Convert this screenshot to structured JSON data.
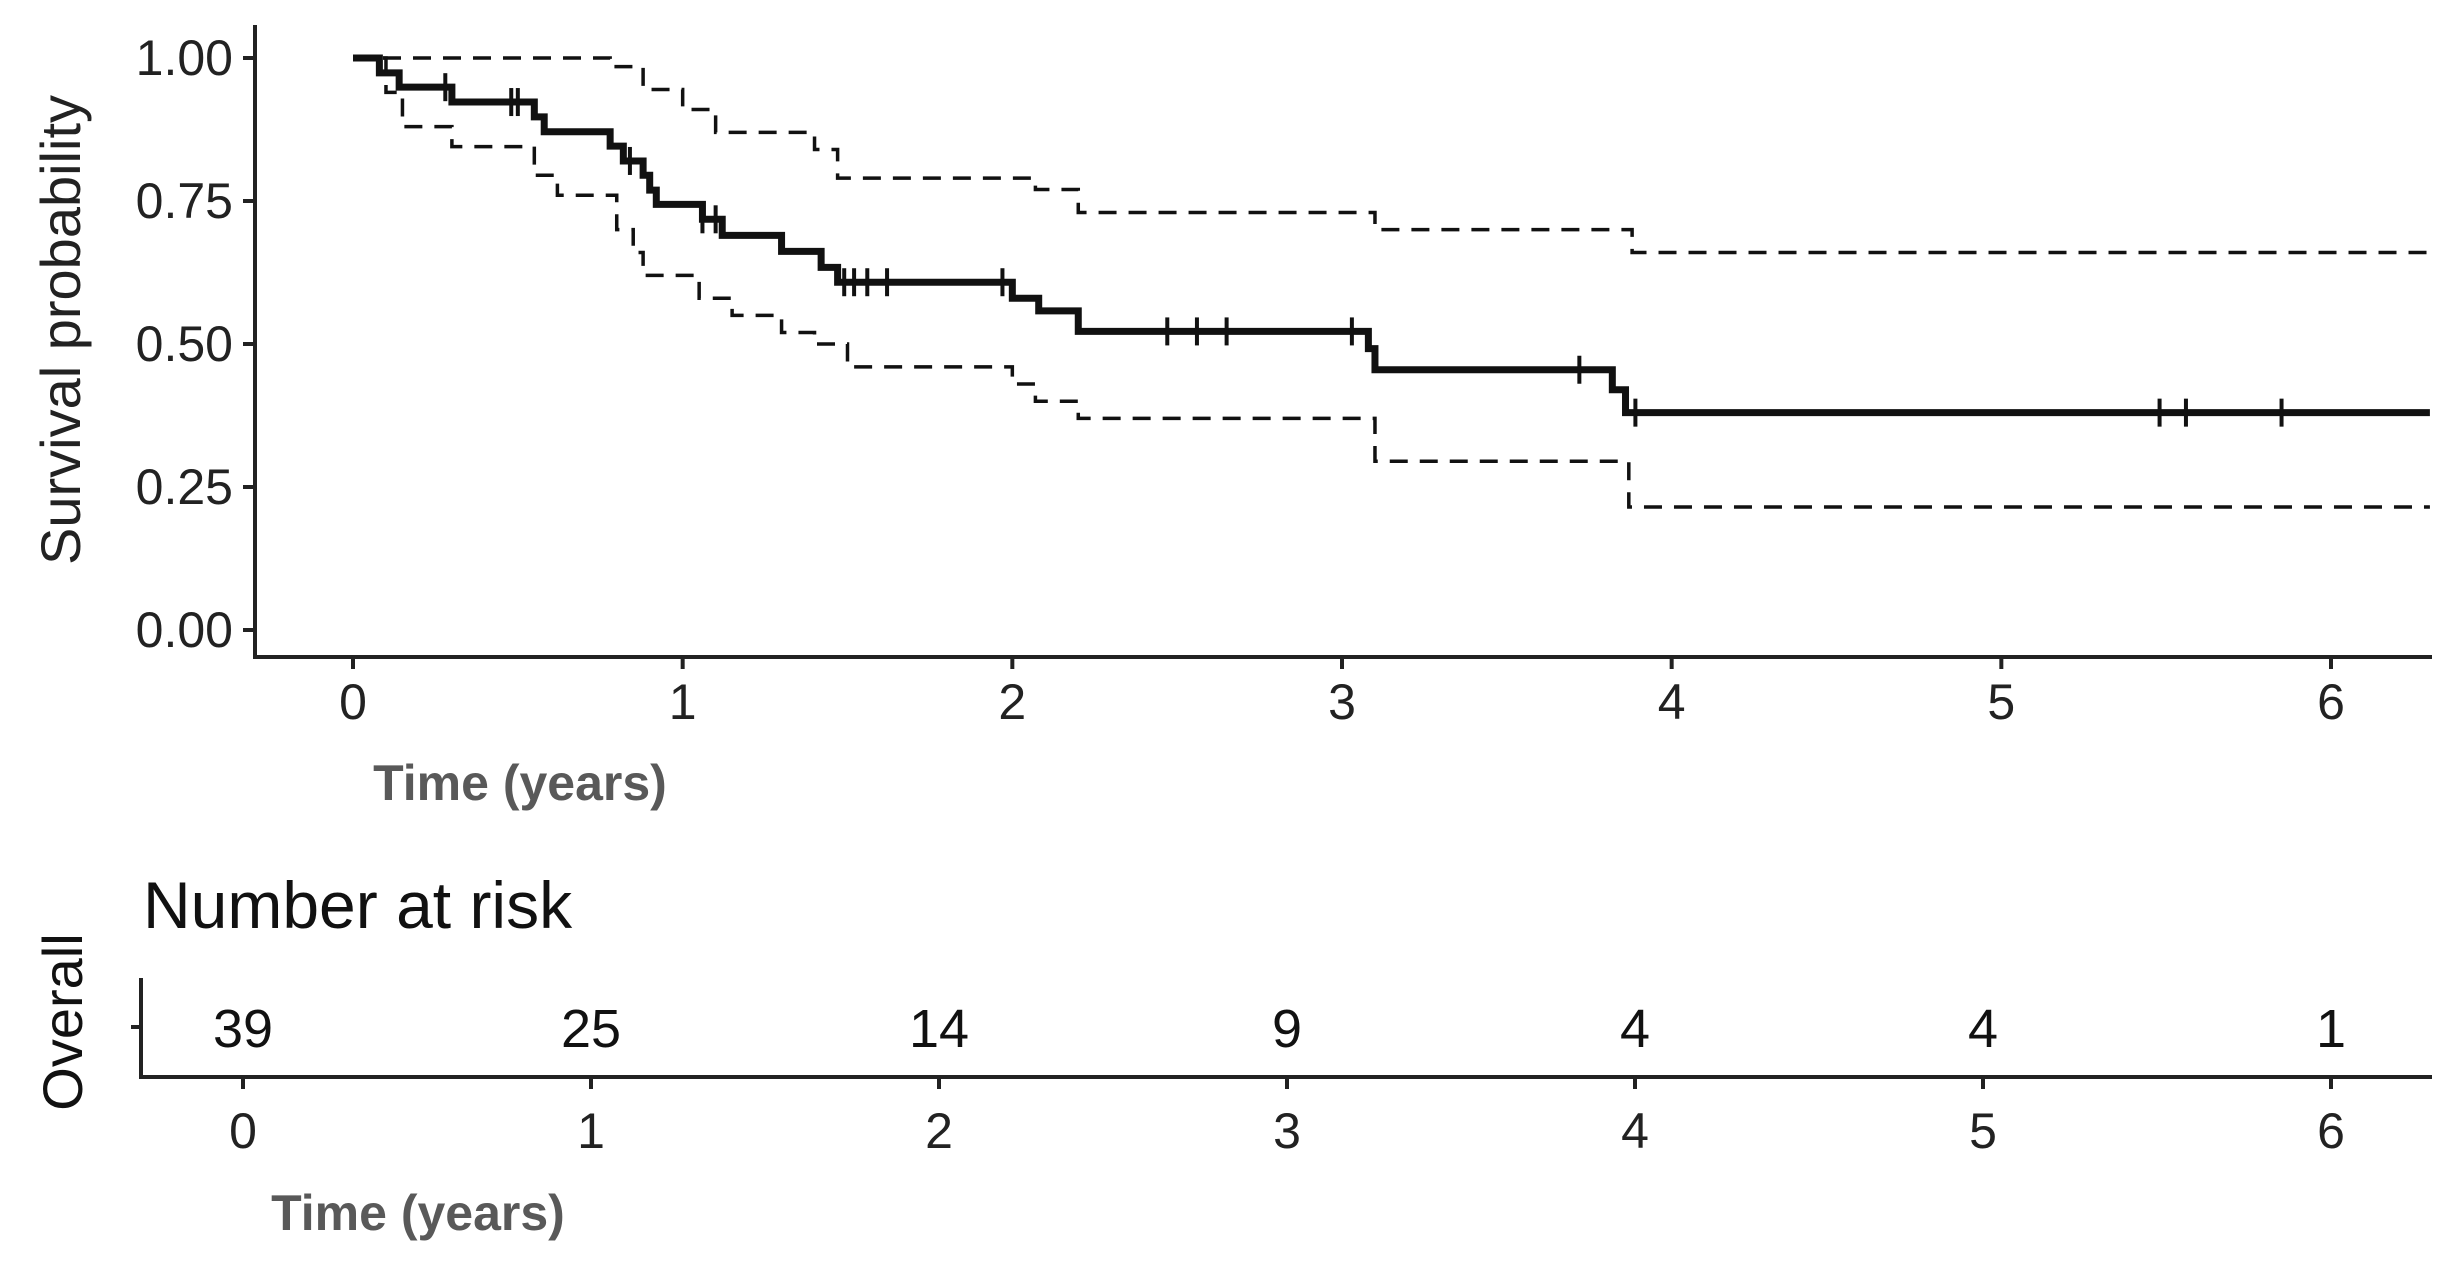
{
  "chart_data": [
    {
      "type": "line",
      "subtype": "kaplan-meier",
      "title": "",
      "xlabel": "Time (years)",
      "ylabel": "Survival probability",
      "xlim": [
        -0.3,
        6.3
      ],
      "ylim": [
        0,
        1
      ],
      "x_ticks": [
        "0",
        "1",
        "2",
        "3",
        "4",
        "5",
        "6"
      ],
      "y_ticks": [
        "0.00",
        "0.25",
        "0.50",
        "0.75",
        "1.00"
      ],
      "grid": false,
      "legend": "none",
      "series": [
        {
          "role": "survival",
          "style": "solid",
          "steps": [
            [
              0,
              1.0
            ],
            [
              0.08,
              0.974
            ],
            [
              0.14,
              0.949
            ],
            [
              0.3,
              0.923
            ],
            [
              0.55,
              0.897
            ],
            [
              0.58,
              0.871
            ],
            [
              0.78,
              0.846
            ],
            [
              0.82,
              0.82
            ],
            [
              0.88,
              0.795
            ],
            [
              0.9,
              0.769
            ],
            [
              0.92,
              0.744
            ],
            [
              1.06,
              0.718
            ],
            [
              1.12,
              0.69
            ],
            [
              1.3,
              0.662
            ],
            [
              1.42,
              0.634
            ],
            [
              1.47,
              0.608
            ],
            [
              2.0,
              0.58
            ],
            [
              2.08,
              0.558
            ],
            [
              2.2,
              0.522
            ],
            [
              3.08,
              0.492
            ],
            [
              3.1,
              0.455
            ],
            [
              3.82,
              0.42
            ],
            [
              3.86,
              0.38
            ],
            [
              6.3,
              0.38
            ]
          ],
          "censor_times": [
            0.28,
            0.48,
            0.5,
            0.84,
            1.06,
            1.1,
            1.49,
            1.52,
            1.56,
            1.62,
            1.97,
            2.47,
            2.56,
            2.65,
            3.03,
            3.72,
            3.89,
            5.48,
            5.56,
            5.85
          ]
        },
        {
          "role": "upper-ci",
          "style": "dashed",
          "steps": [
            [
              0,
              1.0
            ],
            [
              0.78,
              0.985
            ],
            [
              0.88,
              0.945
            ],
            [
              1.0,
              0.91
            ],
            [
              1.1,
              0.87
            ],
            [
              1.4,
              0.84
            ],
            [
              1.47,
              0.79
            ],
            [
              2.07,
              0.77
            ],
            [
              2.2,
              0.73
            ],
            [
              3.1,
              0.7
            ],
            [
              3.88,
              0.66
            ],
            [
              6.3,
              0.66
            ]
          ]
        },
        {
          "role": "lower-ci",
          "style": "dashed",
          "steps": [
            [
              0,
              1.0
            ],
            [
              0.1,
              0.94
            ],
            [
              0.15,
              0.88
            ],
            [
              0.3,
              0.845
            ],
            [
              0.55,
              0.795
            ],
            [
              0.62,
              0.76
            ],
            [
              0.8,
              0.7
            ],
            [
              0.85,
              0.66
            ],
            [
              0.88,
              0.62
            ],
            [
              1.05,
              0.58
            ],
            [
              1.15,
              0.55
            ],
            [
              1.3,
              0.52
            ],
            [
              1.4,
              0.5
            ],
            [
              1.5,
              0.46
            ],
            [
              2.0,
              0.43
            ],
            [
              2.07,
              0.4
            ],
            [
              2.2,
              0.37
            ],
            [
              3.1,
              0.295
            ],
            [
              3.87,
              0.215
            ],
            [
              6.3,
              0.215
            ]
          ]
        }
      ]
    },
    {
      "type": "table",
      "title": "Number at risk",
      "strata_label": "Overall",
      "xlabel": "Time (years)",
      "x_ticks": [
        "0",
        "1",
        "2",
        "3",
        "4",
        "5",
        "6"
      ],
      "times": [
        0,
        1,
        2,
        3,
        4,
        5,
        6
      ],
      "values": [
        39,
        25,
        14,
        9,
        4,
        4,
        1
      ]
    }
  ]
}
